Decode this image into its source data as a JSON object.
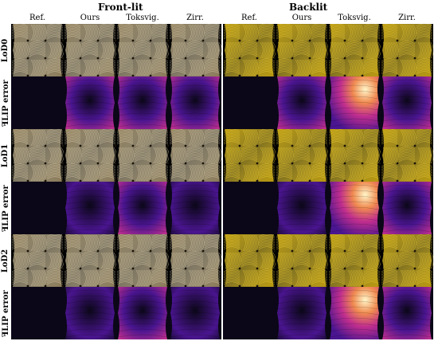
{
  "groups": [
    {
      "title": "Front-lit"
    },
    {
      "title": "Backlit"
    }
  ],
  "columns": [
    "Ref.",
    "Ours",
    "Toksvig.",
    "Zirr.",
    "Ref.",
    "Ours",
    "Toksvig.",
    "Zirr."
  ],
  "rows": [
    {
      "label": "LoD0",
      "type": "render"
    },
    {
      "label": "ꟻLIP error",
      "type": "error"
    },
    {
      "label": "LoD1",
      "type": "render"
    },
    {
      "label": "ꟻLIP error",
      "type": "error"
    },
    {
      "label": "LoD2",
      "type": "render"
    },
    {
      "label": "ꟻLIP error",
      "type": "error"
    }
  ],
  "colors": {
    "front_lit_fabric": "#8a7a58",
    "backlit_fabric": "#b8980f",
    "thread_front": "#e4d6b2",
    "thread_back": "#f0d23a",
    "error_dark": "#0b0718",
    "error_purple": "#4a1590",
    "error_magenta": "#c02e8e",
    "error_orange": "#f08a50",
    "error_yellow": "#fff6c8"
  },
  "error_levels": [
    [
      0.0,
      0.55,
      0.55,
      0.6,
      0.0,
      0.55,
      0.95,
      0.65
    ],
    [
      0.0,
      0.15,
      0.45,
      0.35,
      0.0,
      0.25,
      0.9,
      0.5
    ],
    [
      0.0,
      0.05,
      0.7,
      0.3,
      0.0,
      0.05,
      0.95,
      0.45
    ]
  ]
}
